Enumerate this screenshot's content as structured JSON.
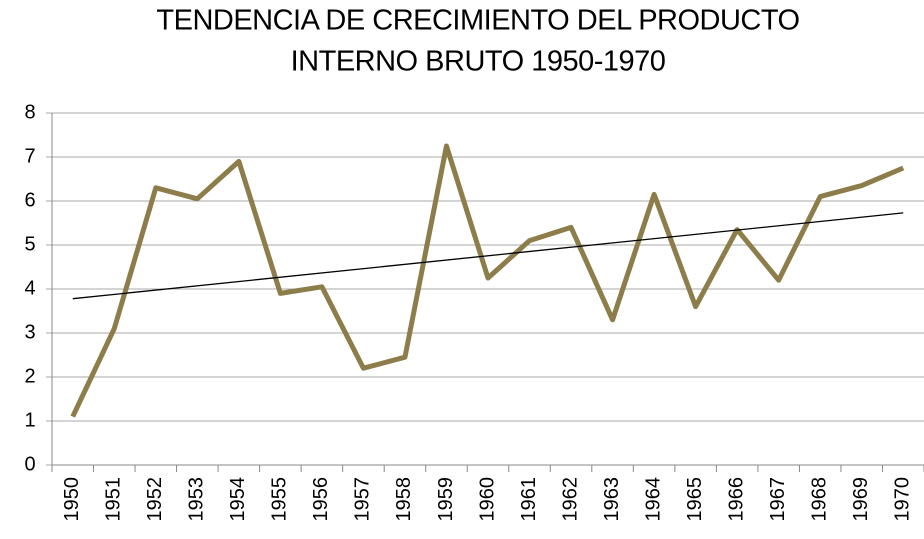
{
  "chart_data": {
    "type": "line",
    "title": [
      "TENDENCIA DE CRECIMIENTO DEL PRODUCTO",
      "INTERNO BRUTO 1950-1970"
    ],
    "categories": [
      "1950",
      "1951",
      "1952",
      "1953",
      "1954",
      "1955",
      "1956",
      "1957",
      "1958",
      "1959",
      "1960",
      "1961",
      "1962",
      "1963",
      "1964",
      "1965",
      "1966",
      "1967",
      "1968",
      "1969",
      "1970"
    ],
    "series": [
      {
        "color": "#8c7d4a",
        "values": [
          1.1,
          3.1,
          6.3,
          6.05,
          6.9,
          3.9,
          4.05,
          2.2,
          2.45,
          7.25,
          4.25,
          5.1,
          5.4,
          3.3,
          6.15,
          3.6,
          5.35,
          4.2,
          6.1,
          6.35,
          6.75
        ]
      }
    ],
    "trendline": {
      "color": "#000000",
      "values": [
        3.78,
        5.73
      ]
    },
    "ylim": [
      0,
      8
    ],
    "yticks": [
      0,
      1,
      2,
      3,
      4,
      5,
      6,
      7,
      8
    ],
    "grid": true
  }
}
